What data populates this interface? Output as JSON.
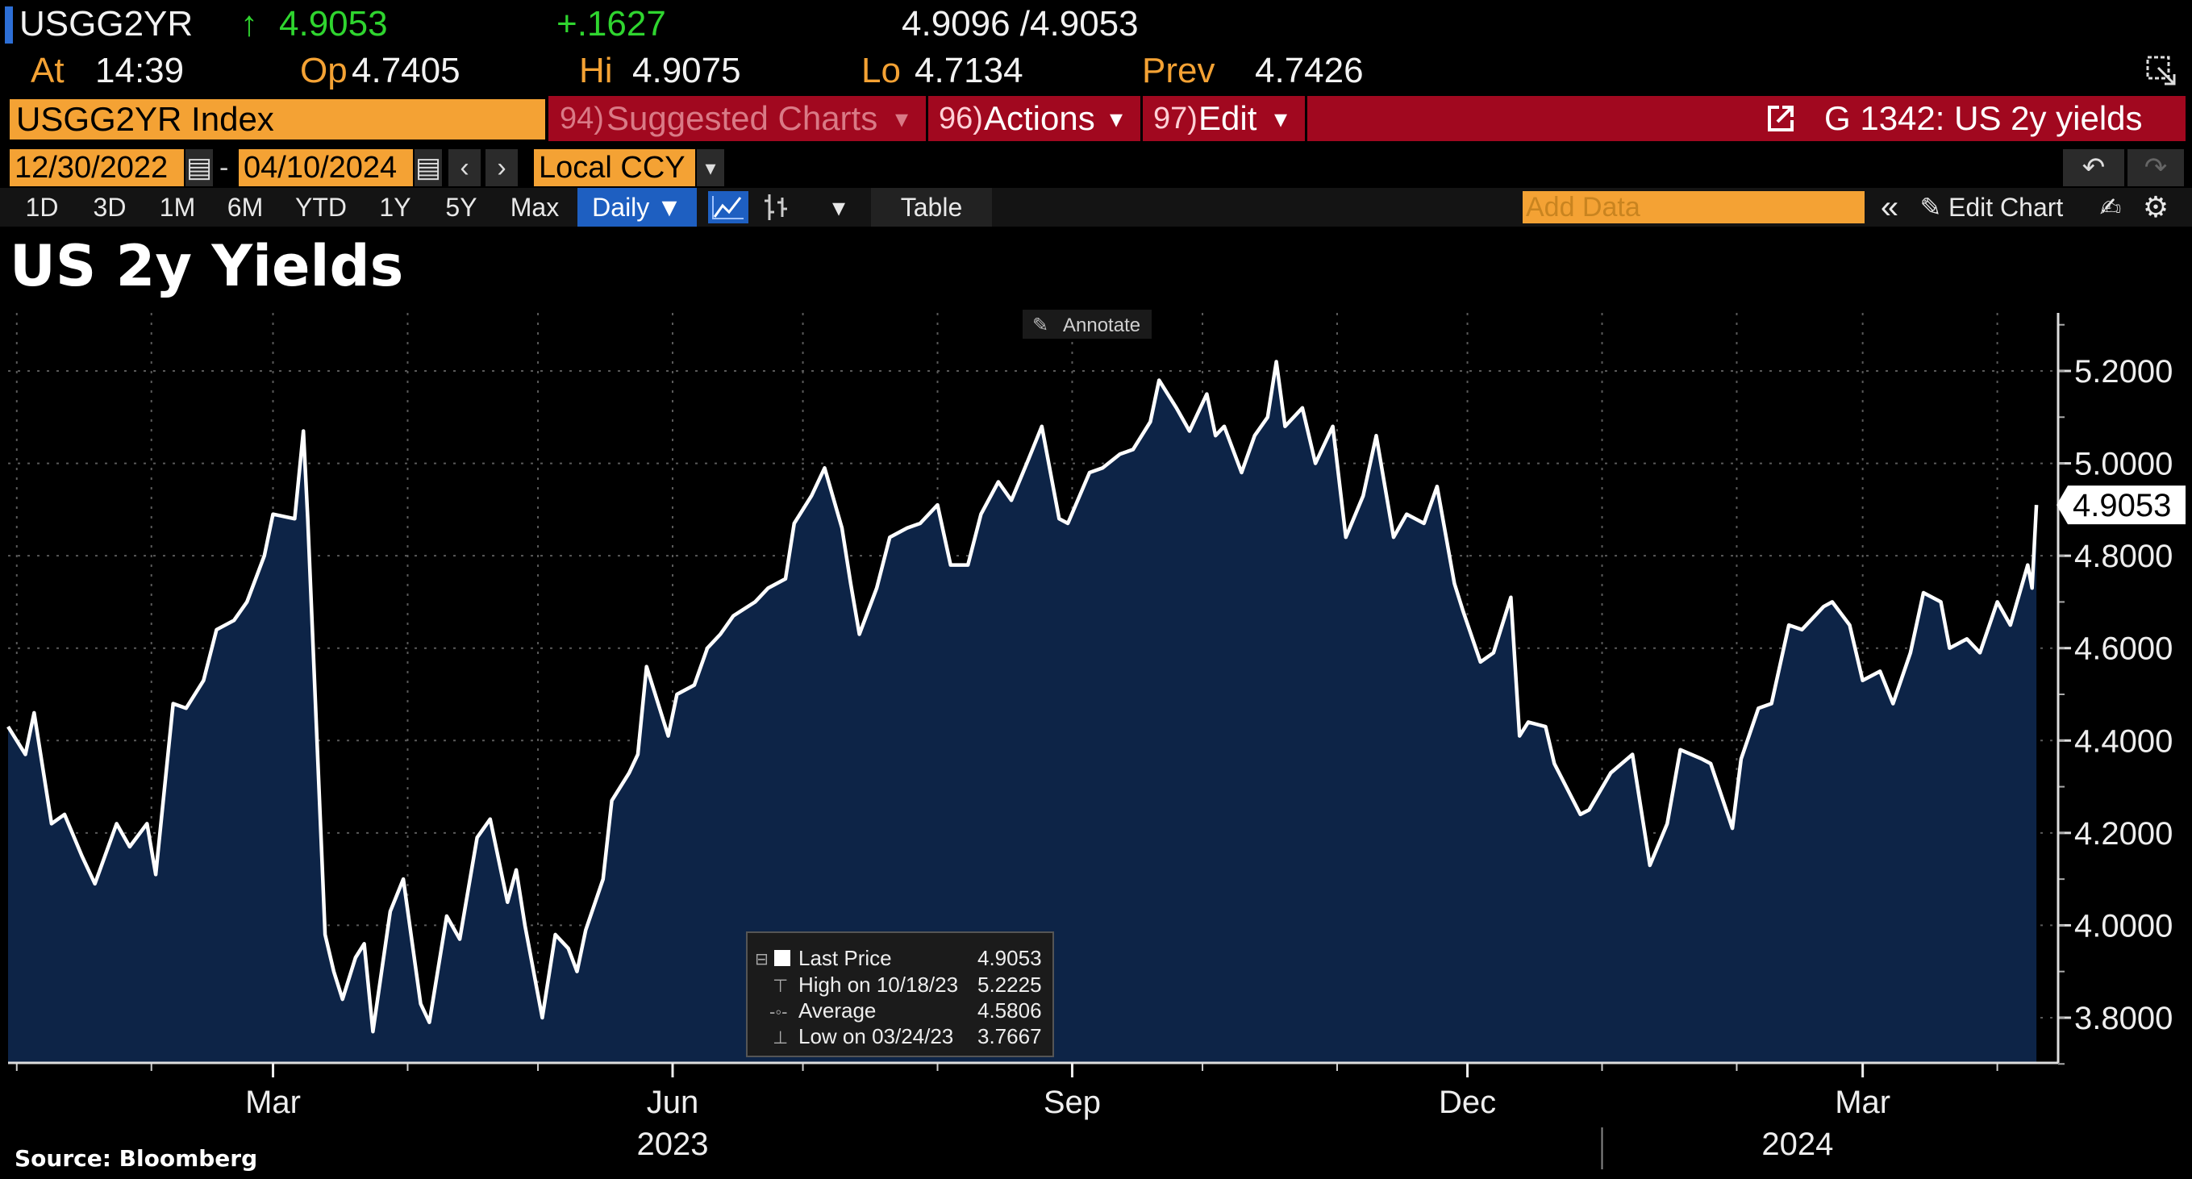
{
  "header": {
    "ticker": "USGG2YR",
    "arrow": "↑",
    "last": "4.9053",
    "change": "+.1627",
    "bid_ask": "4.9096 /4.9053",
    "at_label": "At",
    "time": "14:39",
    "op_label": "Op",
    "open": "4.7405",
    "hi_label": "Hi",
    "high": "4.9075",
    "lo_label": "Lo",
    "low": "4.7134",
    "prev_label": "Prev",
    "prev": "4.7426"
  },
  "toolbar": {
    "security": "USGG2YR Index",
    "suggested_num": "94)",
    "suggested": "Suggested Charts",
    "actions_num": "96)",
    "actions": "Actions",
    "edit_num": "97)",
    "edit": "Edit",
    "chart_id": "G 1342: US 2y yields",
    "start_date": "12/30/2022",
    "end_date": "04/10/2024",
    "currency": "Local CCY",
    "periods": [
      "1D",
      "3D",
      "1M",
      "6M",
      "YTD",
      "1Y",
      "5Y",
      "Max"
    ],
    "frequency": "Daily ▼",
    "table": "Table",
    "add_data_placeholder": "Add Data",
    "edit_chart": "Edit Chart"
  },
  "annotate": "Annotate",
  "source": "Source: Bloomberg",
  "legend": {
    "rows": [
      {
        "label": "Last Price",
        "value": "4.9053"
      },
      {
        "label": "High on 10/18/23",
        "value": "5.2225"
      },
      {
        "label": "Average",
        "value": "4.5806"
      },
      {
        "label": "Low on 03/24/23",
        "value": "3.7667"
      }
    ]
  },
  "colors": {
    "background": "#000000",
    "line": "#ffffff",
    "area_fill": "#0d2447",
    "accent_orange": "#f4a234",
    "accent_red": "#a1081f",
    "accent_green": "#2fd52f"
  },
  "chart_data": {
    "type": "area",
    "title": "US 2y Yields",
    "xlabel": "",
    "ylabel": "",
    "ylim": [
      3.7,
      5.3
    ],
    "yticks": [
      3.8,
      4.0,
      4.2,
      4.4,
      4.6,
      4.8,
      5.0,
      5.2
    ],
    "ytick_labels": [
      "3.8000",
      "4.0000",
      "4.2000",
      "4.4000",
      "4.6000",
      "4.8000",
      "5.0000",
      "5.2000"
    ],
    "xlim": [
      "2022-12-30",
      "2024-04-15"
    ],
    "xtick_labels": [
      {
        "date": "2023-03-01",
        "label": "Mar"
      },
      {
        "date": "2023-06-01",
        "label": "Jun"
      },
      {
        "date": "2023-09-01",
        "label": "Sep"
      },
      {
        "date": "2023-12-01",
        "label": "Dec"
      },
      {
        "date": "2024-03-01",
        "label": "Mar"
      }
    ],
    "year_labels": [
      {
        "date": "2023-06-01",
        "label": "2023"
      },
      {
        "date": "2024-02-15",
        "label": "2024"
      }
    ],
    "last_value_label": "4.9053",
    "grid": true,
    "series": [
      {
        "name": "Last Price",
        "points": [
          [
            "2022-12-30",
            4.43
          ],
          [
            "2023-01-03",
            4.37
          ],
          [
            "2023-01-05",
            4.46
          ],
          [
            "2023-01-09",
            4.22
          ],
          [
            "2023-01-12",
            4.24
          ],
          [
            "2023-01-16",
            4.15
          ],
          [
            "2023-01-19",
            4.09
          ],
          [
            "2023-01-24",
            4.22
          ],
          [
            "2023-01-27",
            4.17
          ],
          [
            "2023-01-31",
            4.22
          ],
          [
            "2023-02-02",
            4.11
          ],
          [
            "2023-02-06",
            4.48
          ],
          [
            "2023-02-09",
            4.47
          ],
          [
            "2023-02-13",
            4.53
          ],
          [
            "2023-02-16",
            4.64
          ],
          [
            "2023-02-20",
            4.66
          ],
          [
            "2023-02-23",
            4.7
          ],
          [
            "2023-02-27",
            4.8
          ],
          [
            "2023-03-01",
            4.89
          ],
          [
            "2023-03-06",
            4.88
          ],
          [
            "2023-03-08",
            5.07
          ],
          [
            "2023-03-09",
            4.88
          ],
          [
            "2023-03-13",
            3.98
          ],
          [
            "2023-03-15",
            3.9
          ],
          [
            "2023-03-17",
            3.84
          ],
          [
            "2023-03-20",
            3.93
          ],
          [
            "2023-03-22",
            3.96
          ],
          [
            "2023-03-24",
            3.77
          ],
          [
            "2023-03-28",
            4.03
          ],
          [
            "2023-03-31",
            4.1
          ],
          [
            "2023-04-04",
            3.83
          ],
          [
            "2023-04-06",
            3.79
          ],
          [
            "2023-04-10",
            4.02
          ],
          [
            "2023-04-13",
            3.97
          ],
          [
            "2023-04-17",
            4.19
          ],
          [
            "2023-04-20",
            4.23
          ],
          [
            "2023-04-24",
            4.05
          ],
          [
            "2023-04-26",
            4.12
          ],
          [
            "2023-04-28",
            4.0
          ],
          [
            "2023-05-02",
            3.8
          ],
          [
            "2023-05-05",
            3.98
          ],
          [
            "2023-05-08",
            3.95
          ],
          [
            "2023-05-10",
            3.9
          ],
          [
            "2023-05-12",
            3.99
          ],
          [
            "2023-05-16",
            4.1
          ],
          [
            "2023-05-18",
            4.27
          ],
          [
            "2023-05-22",
            4.33
          ],
          [
            "2023-05-24",
            4.37
          ],
          [
            "2023-05-26",
            4.56
          ],
          [
            "2023-05-31",
            4.41
          ],
          [
            "2023-06-02",
            4.5
          ],
          [
            "2023-06-06",
            4.52
          ],
          [
            "2023-06-09",
            4.6
          ],
          [
            "2023-06-12",
            4.63
          ],
          [
            "2023-06-15",
            4.67
          ],
          [
            "2023-06-20",
            4.7
          ],
          [
            "2023-06-23",
            4.73
          ],
          [
            "2023-06-27",
            4.75
          ],
          [
            "2023-06-29",
            4.87
          ],
          [
            "2023-07-03",
            4.93
          ],
          [
            "2023-07-06",
            4.99
          ],
          [
            "2023-07-10",
            4.86
          ],
          [
            "2023-07-12",
            4.74
          ],
          [
            "2023-07-14",
            4.63
          ],
          [
            "2023-07-18",
            4.73
          ],
          [
            "2023-07-21",
            4.84
          ],
          [
            "2023-07-25",
            4.86
          ],
          [
            "2023-07-28",
            4.87
          ],
          [
            "2023-08-01",
            4.91
          ],
          [
            "2023-08-04",
            4.78
          ],
          [
            "2023-08-08",
            4.78
          ],
          [
            "2023-08-11",
            4.89
          ],
          [
            "2023-08-15",
            4.96
          ],
          [
            "2023-08-18",
            4.92
          ],
          [
            "2023-08-22",
            5.01
          ],
          [
            "2023-08-25",
            5.08
          ],
          [
            "2023-08-29",
            4.88
          ],
          [
            "2023-08-31",
            4.87
          ],
          [
            "2023-09-05",
            4.98
          ],
          [
            "2023-09-08",
            4.99
          ],
          [
            "2023-09-12",
            5.02
          ],
          [
            "2023-09-15",
            5.03
          ],
          [
            "2023-09-19",
            5.09
          ],
          [
            "2023-09-21",
            5.18
          ],
          [
            "2023-09-25",
            5.12
          ],
          [
            "2023-09-28",
            5.07
          ],
          [
            "2023-10-02",
            5.15
          ],
          [
            "2023-10-04",
            5.06
          ],
          [
            "2023-10-06",
            5.08
          ],
          [
            "2023-10-10",
            4.98
          ],
          [
            "2023-10-13",
            5.06
          ],
          [
            "2023-10-16",
            5.1
          ],
          [
            "2023-10-18",
            5.22
          ],
          [
            "2023-10-20",
            5.08
          ],
          [
            "2023-10-24",
            5.12
          ],
          [
            "2023-10-27",
            5.0
          ],
          [
            "2023-10-31",
            5.08
          ],
          [
            "2023-11-03",
            4.84
          ],
          [
            "2023-11-07",
            4.93
          ],
          [
            "2023-11-10",
            5.06
          ],
          [
            "2023-11-14",
            4.84
          ],
          [
            "2023-11-17",
            4.89
          ],
          [
            "2023-11-21",
            4.87
          ],
          [
            "2023-11-24",
            4.95
          ],
          [
            "2023-11-28",
            4.74
          ],
          [
            "2023-11-30",
            4.68
          ],
          [
            "2023-12-04",
            4.57
          ],
          [
            "2023-12-07",
            4.59
          ],
          [
            "2023-12-11",
            4.71
          ],
          [
            "2023-12-13",
            4.41
          ],
          [
            "2023-12-15",
            4.44
          ],
          [
            "2023-12-19",
            4.43
          ],
          [
            "2023-12-21",
            4.35
          ],
          [
            "2023-12-27",
            4.24
          ],
          [
            "2023-12-29",
            4.25
          ],
          [
            "2024-01-03",
            4.33
          ],
          [
            "2024-01-08",
            4.37
          ],
          [
            "2024-01-12",
            4.13
          ],
          [
            "2024-01-16",
            4.22
          ],
          [
            "2024-01-19",
            4.38
          ],
          [
            "2024-01-24",
            4.36
          ],
          [
            "2024-01-26",
            4.35
          ],
          [
            "2024-01-31",
            4.21
          ],
          [
            "2024-02-02",
            4.36
          ],
          [
            "2024-02-06",
            4.47
          ],
          [
            "2024-02-09",
            4.48
          ],
          [
            "2024-02-13",
            4.65
          ],
          [
            "2024-02-16",
            4.64
          ],
          [
            "2024-02-21",
            4.69
          ],
          [
            "2024-02-23",
            4.7
          ],
          [
            "2024-02-27",
            4.65
          ],
          [
            "2024-03-01",
            4.53
          ],
          [
            "2024-03-05",
            4.55
          ],
          [
            "2024-03-08",
            4.48
          ],
          [
            "2024-03-12",
            4.59
          ],
          [
            "2024-03-15",
            4.72
          ],
          [
            "2024-03-19",
            4.7
          ],
          [
            "2024-03-21",
            4.6
          ],
          [
            "2024-03-25",
            4.62
          ],
          [
            "2024-03-28",
            4.59
          ],
          [
            "2024-04-01",
            4.7
          ],
          [
            "2024-04-04",
            4.65
          ],
          [
            "2024-04-08",
            4.78
          ],
          [
            "2024-04-09",
            4.73
          ],
          [
            "2024-04-10",
            4.91
          ]
        ]
      }
    ]
  }
}
